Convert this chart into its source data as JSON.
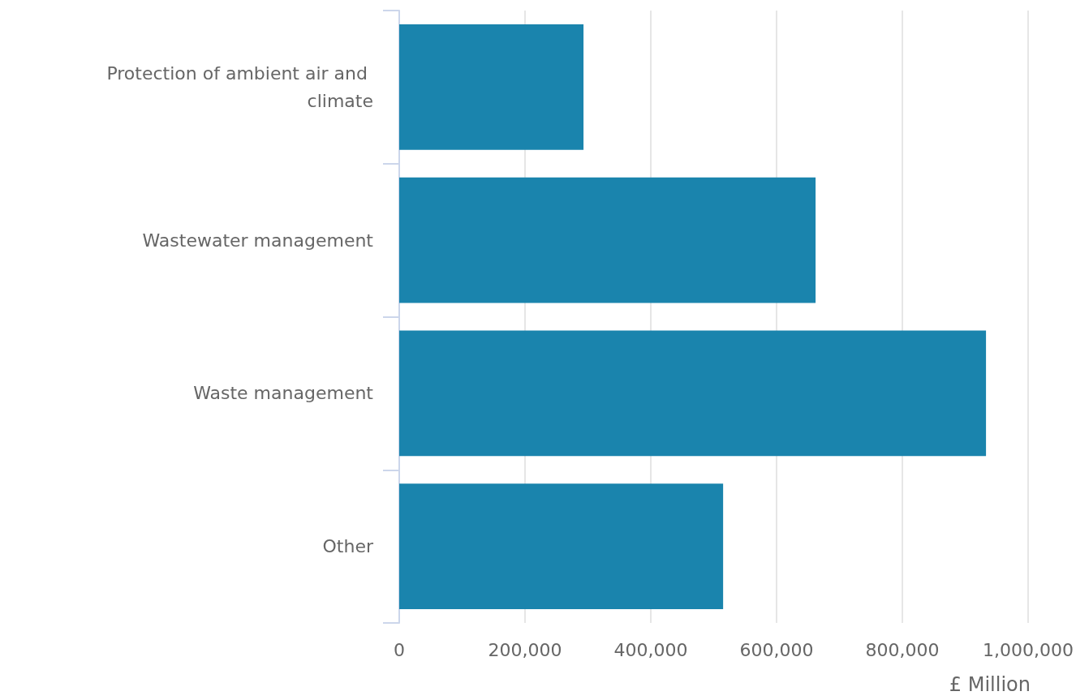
{
  "chart_data": {
    "type": "bar",
    "orientation": "horizontal",
    "xlabel": "£ Million",
    "categories": [
      "Protection of ambient air and climate",
      "Wastewater management",
      "Waste management",
      "Other"
    ],
    "values": [
      293000,
      662000,
      933000,
      515000
    ],
    "color": "#1a84ad",
    "xlim": [
      0,
      1000000
    ],
    "xticks": [
      0,
      {
        "value": 200000,
        "label": "200,000"
      },
      {
        "value": 400000,
        "label": "400,000"
      },
      {
        "value": 600000,
        "label": "600,000"
      },
      {
        "value": 800000,
        "label": "800,000"
      },
      {
        "value": 1000000,
        "label": "1,000,000"
      }
    ],
    "grid": "x"
  }
}
